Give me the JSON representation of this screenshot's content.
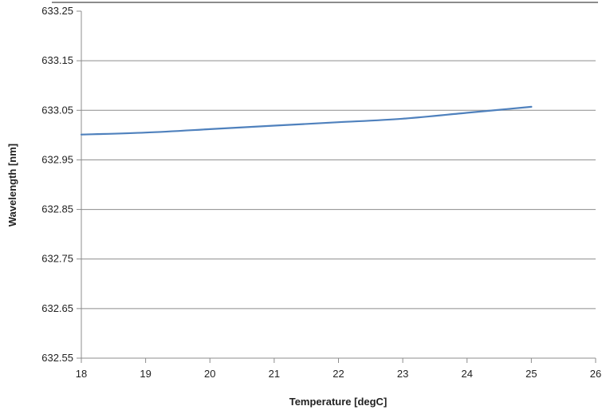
{
  "chart_data": {
    "type": "line",
    "title": "",
    "xlabel": "Temperature [degC]",
    "ylabel": "Wavelength [nm]",
    "xlim": [
      18,
      26
    ],
    "ylim": [
      632.55,
      633.25
    ],
    "x_ticks": [
      "18",
      "19",
      "20",
      "21",
      "22",
      "23",
      "24",
      "25",
      "26"
    ],
    "y_ticks": [
      "633.25",
      "633.15",
      "633.05",
      "632.95",
      "632.85",
      "632.75",
      "632.65",
      "632.55"
    ],
    "grid": "horizontal",
    "legend": "none",
    "series": [
      {
        "color": "#4f81bd",
        "x": [
          18,
          19,
          20,
          21,
          22,
          23,
          24,
          25
        ],
        "y": [
          633.001,
          633.005,
          633.012,
          633.019,
          633.026,
          633.033,
          633.045,
          633.057
        ]
      }
    ]
  }
}
